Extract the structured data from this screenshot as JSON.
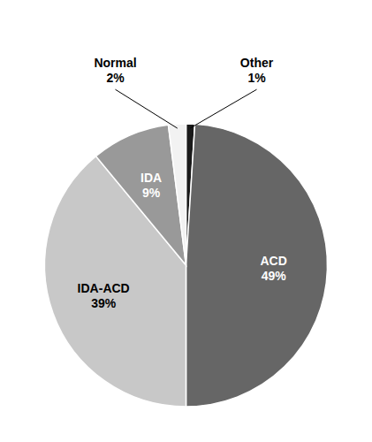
{
  "chart_data": {
    "type": "pie",
    "categories": [
      "Other",
      "ACD",
      "IDA-ACD",
      "IDA",
      "Normal"
    ],
    "values": [
      1,
      49,
      39,
      9,
      2
    ],
    "value_labels": [
      "1%",
      "49%",
      "39%",
      "9%",
      "2%"
    ],
    "colors": [
      "#1a1a1a",
      "#666666",
      "#c8c8c8",
      "#999999",
      "#f2f2f2"
    ],
    "data_labels": true
  }
}
